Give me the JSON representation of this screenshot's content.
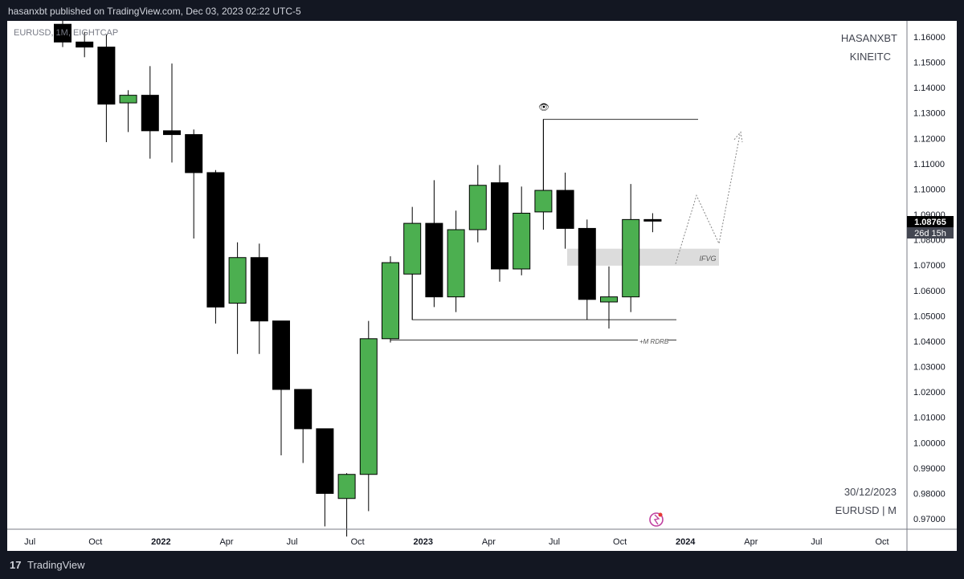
{
  "header": {
    "text": "hasanxbt published on TradingView.com, Dec 03, 2023 02:22 UTC-5"
  },
  "symbol_label": "EURUSD, 1M, EIGHTCAP",
  "watermark": {
    "line1": "HASANXBT",
    "line2": "KINEITC",
    "date": "30/12/2023",
    "symbol": "EURUSD | M"
  },
  "price_tag": {
    "price": "1.08765",
    "countdown": "26d 15h"
  },
  "annotations": {
    "ifvg": "IFVG",
    "rdrb": "+M RDRB",
    "eye": "👁"
  },
  "footer": {
    "brand_mark": "17",
    "brand": "TradingView"
  },
  "colors": {
    "up": "#4caf50",
    "down": "#000000",
    "background": "#ffffff",
    "frame": "#131722"
  },
  "chart_data": {
    "type": "candlestick",
    "title": "",
    "ylim": [
      0.965,
      1.168
    ],
    "y_ticks": [
      "1.16000",
      "1.15000",
      "1.14000",
      "1.13000",
      "1.12000",
      "1.11000",
      "1.10000",
      "1.09000",
      "1.08000",
      "1.07000",
      "1.06000",
      "1.05000",
      "1.04000",
      "1.03000",
      "1.02000",
      "1.01000",
      "1.00000",
      "0.99000",
      "0.98000",
      "0.97000"
    ],
    "x_ticks": [
      {
        "label": "Jul",
        "index": -1.5
      },
      {
        "label": "Oct",
        "index": 1.5
      },
      {
        "label": "2022",
        "index": 4.5,
        "bold": true
      },
      {
        "label": "Apr",
        "index": 7.5
      },
      {
        "label": "Jul",
        "index": 10.5
      },
      {
        "label": "Oct",
        "index": 13.5
      },
      {
        "label": "2023",
        "index": 16.5,
        "bold": true
      },
      {
        "label": "Apr",
        "index": 19.5
      },
      {
        "label": "Jul",
        "index": 22.5
      },
      {
        "label": "Oct",
        "index": 25.5
      },
      {
        "label": "2024",
        "index": 28.5,
        "bold": true
      },
      {
        "label": "Apr",
        "index": 31.5
      },
      {
        "label": "Jul",
        "index": 34.5
      },
      {
        "label": "Oct",
        "index": 37.5
      }
    ],
    "candles": [
      {
        "o": 1.165,
        "h": 1.17,
        "l": 1.156,
        "c": 1.158
      },
      {
        "o": 1.158,
        "h": 1.162,
        "l": 1.152,
        "c": 1.156
      },
      {
        "o": 1.156,
        "h": 1.161,
        "l": 1.1185,
        "c": 1.1335
      },
      {
        "o": 1.134,
        "h": 1.139,
        "l": 1.1225,
        "c": 1.137
      },
      {
        "o": 1.137,
        "h": 1.1485,
        "l": 1.112,
        "c": 1.123
      },
      {
        "o": 1.123,
        "h": 1.1495,
        "l": 1.1105,
        "c": 1.1215
      },
      {
        "o": 1.1215,
        "h": 1.1235,
        "l": 1.0805,
        "c": 1.1065
      },
      {
        "o": 1.1065,
        "h": 1.1075,
        "l": 1.047,
        "c": 1.0535
      },
      {
        "o": 1.055,
        "h": 1.079,
        "l": 1.035,
        "c": 1.073
      },
      {
        "o": 1.073,
        "h": 1.0785,
        "l": 1.035,
        "c": 1.048
      },
      {
        "o": 1.048,
        "h": 1.048,
        "l": 0.995,
        "c": 1.021
      },
      {
        "o": 1.021,
        "h": 1.021,
        "l": 0.992,
        "c": 1.0055
      },
      {
        "o": 1.0055,
        "h": 1.0055,
        "l": 0.967,
        "c": 0.98
      },
      {
        "o": 0.978,
        "h": 0.988,
        "l": 0.963,
        "c": 0.9875
      },
      {
        "o": 0.9875,
        "h": 1.048,
        "l": 0.973,
        "c": 1.041
      },
      {
        "o": 1.041,
        "h": 1.0735,
        "l": 1.0395,
        "c": 1.071
      },
      {
        "o": 1.0665,
        "h": 1.093,
        "l": 1.0485,
        "c": 1.0865
      },
      {
        "o": 1.0865,
        "h": 1.1035,
        "l": 1.0535,
        "c": 1.0575
      },
      {
        "o": 1.0575,
        "h": 1.0915,
        "l": 1.0515,
        "c": 1.084
      },
      {
        "o": 1.084,
        "h": 1.1095,
        "l": 1.079,
        "c": 1.1015
      },
      {
        "o": 1.1025,
        "h": 1.1095,
        "l": 1.0635,
        "c": 1.0685
      },
      {
        "o": 1.0685,
        "h": 1.101,
        "l": 1.066,
        "c": 1.0905
      },
      {
        "o": 1.091,
        "h": 1.1275,
        "l": 1.084,
        "c": 1.0995
      },
      {
        "o": 1.0995,
        "h": 1.1065,
        "l": 1.0765,
        "c": 1.0845
      },
      {
        "o": 1.0845,
        "h": 1.088,
        "l": 1.0485,
        "c": 1.0565
      },
      {
        "o": 1.0555,
        "h": 1.0695,
        "l": 1.045,
        "c": 1.0575
      },
      {
        "o": 1.0575,
        "h": 1.102,
        "l": 1.0515,
        "c": 1.088
      },
      {
        "o": 1.088,
        "h": 1.0905,
        "l": 1.083,
        "c": 1.0877
      }
    ]
  }
}
